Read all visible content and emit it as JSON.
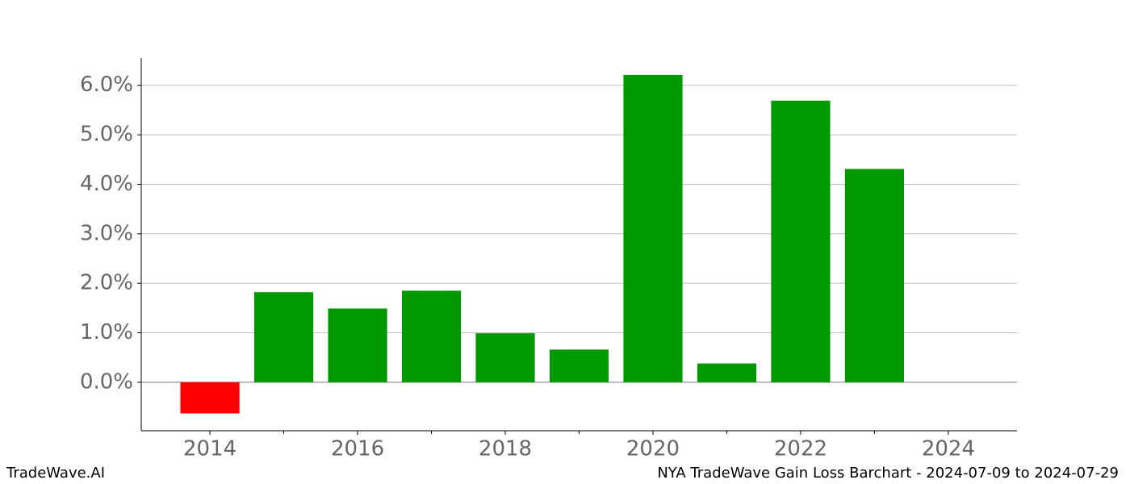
{
  "chart_data": {
    "type": "bar",
    "x": [
      2014,
      2015,
      2016,
      2017,
      2018,
      2019,
      2020,
      2021,
      2022,
      2023
    ],
    "values": [
      -0.63,
      1.82,
      1.49,
      1.85,
      0.99,
      0.66,
      6.21,
      0.38,
      5.69,
      4.31
    ],
    "color": "#009900",
    "negative_color": "#ff0000",
    "xlim": [
      2013.07,
      2024.93
    ],
    "xticks": [
      2014,
      2016,
      2018,
      2020,
      2022,
      2024
    ],
    "ylim": [
      -0.98,
      6.55
    ],
    "yticks": [
      {
        "value": 0,
        "label": "0.0%"
      },
      {
        "value": 1,
        "label": "1.0%"
      },
      {
        "value": 2,
        "label": "2.0%"
      },
      {
        "value": 3,
        "label": "3.0%"
      },
      {
        "value": 4,
        "label": "4.0%"
      },
      {
        "value": 5,
        "label": "5.0%"
      },
      {
        "value": 6,
        "label": "6.0%"
      }
    ],
    "grid": true,
    "watermark": "TradeWave.AI",
    "title": "NYA TradeWave Gain Loss Barchart - 2024-07-09 to 2024-07-29"
  }
}
